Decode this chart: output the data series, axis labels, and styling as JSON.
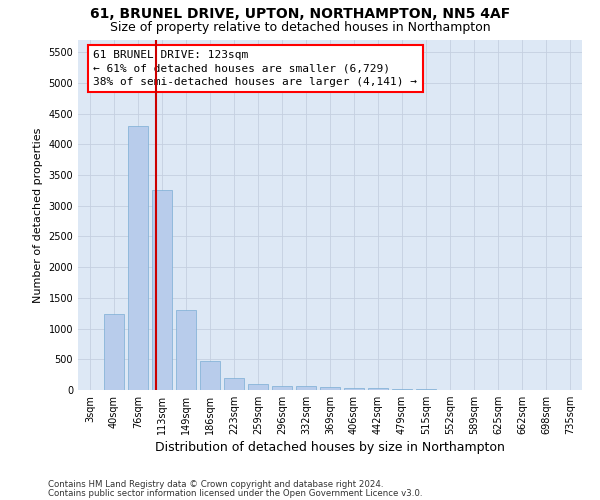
{
  "title": "61, BRUNEL DRIVE, UPTON, NORTHAMPTON, NN5 4AF",
  "subtitle": "Size of property relative to detached houses in Northampton",
  "xlabel": "Distribution of detached houses by size in Northampton",
  "ylabel": "Number of detached properties",
  "footnote1": "Contains HM Land Registry data © Crown copyright and database right 2024.",
  "footnote2": "Contains public sector information licensed under the Open Government Licence v3.0.",
  "annotation_line0": "61 BRUNEL DRIVE: 123sqm",
  "annotation_line1": "← 61% of detached houses are smaller (6,729)",
  "annotation_line2": "38% of semi-detached houses are larger (4,141) →",
  "bar_labels": [
    "3sqm",
    "40sqm",
    "76sqm",
    "113sqm",
    "149sqm",
    "186sqm",
    "223sqm",
    "259sqm",
    "296sqm",
    "332sqm",
    "369sqm",
    "406sqm",
    "442sqm",
    "479sqm",
    "515sqm",
    "552sqm",
    "589sqm",
    "625sqm",
    "662sqm",
    "698sqm",
    "735sqm"
  ],
  "bar_values": [
    0,
    1230,
    4300,
    3250,
    1300,
    470,
    200,
    100,
    65,
    60,
    55,
    40,
    30,
    20,
    10,
    5,
    5,
    3,
    2,
    1,
    0
  ],
  "bar_color": "#b8cceb",
  "bar_edge_color": "#7aadd4",
  "vline_x": 2.77,
  "vline_color": "#cc0000",
  "ylim": [
    0,
    5700
  ],
  "yticks": [
    0,
    500,
    1000,
    1500,
    2000,
    2500,
    3000,
    3500,
    4000,
    4500,
    5000,
    5500
  ],
  "bg_color": "#ffffff",
  "plot_bg_color": "#dde8f5",
  "grid_color": "#c5cfe0",
  "title_fontsize": 10,
  "subtitle_fontsize": 9,
  "xlabel_fontsize": 9,
  "ylabel_fontsize": 8,
  "tick_fontsize": 7,
  "annotation_fontsize": 8
}
